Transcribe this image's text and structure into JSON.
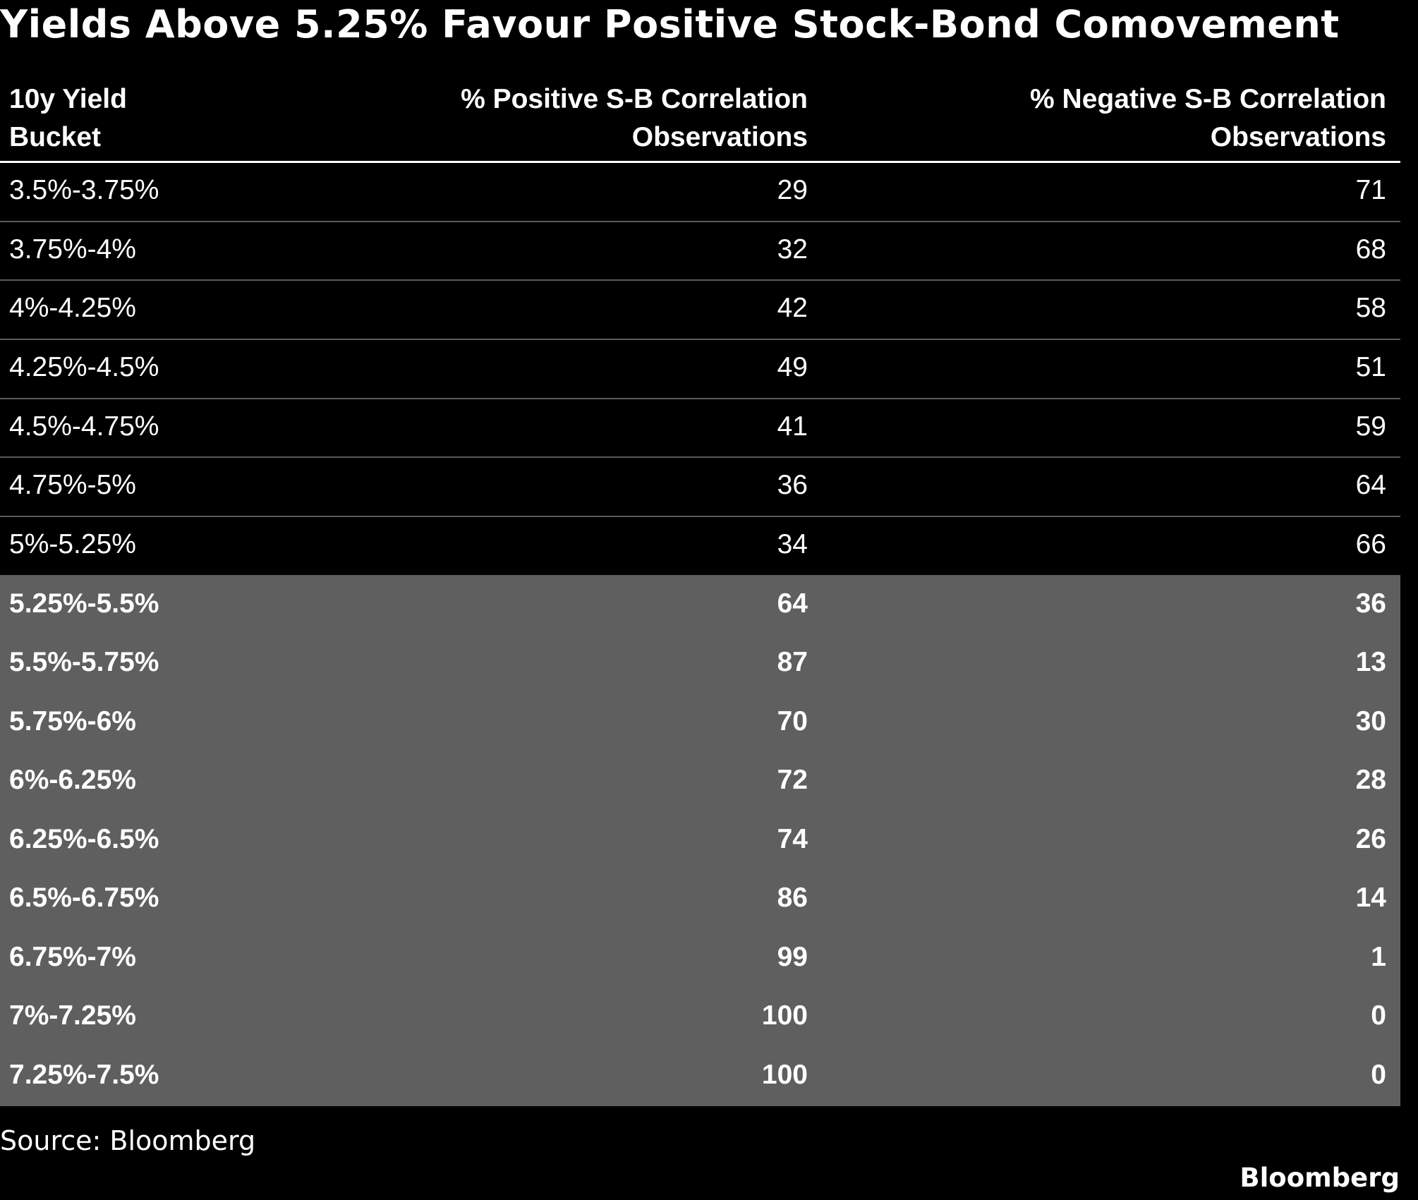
{
  "title": "Yields Above 5.25% Favour Positive Stock-Bond Comovement",
  "source": "Source: Bloomberg",
  "brand": "Bloomberg",
  "colors": {
    "background": "#000000",
    "highlight_row_background": "#5f5f5f",
    "text": "#ffffff",
    "row_divider": "#5a5a5a"
  },
  "chart_data": {
    "type": "table",
    "title": "Yields Above 5.25% Favour Positive Stock-Bond Comovement",
    "columns": [
      "10y Yield\nBucket",
      "% Positive S-B Correlation\nObservations",
      "% Negative S-B Correlation\nObservations"
    ],
    "rows": [
      {
        "bucket": "3.5%-3.75%",
        "positive": 29,
        "negative": 71,
        "highlight": false
      },
      {
        "bucket": "3.75%-4%",
        "positive": 32,
        "negative": 68,
        "highlight": false
      },
      {
        "bucket": "4%-4.25%",
        "positive": 42,
        "negative": 58,
        "highlight": false
      },
      {
        "bucket": "4.25%-4.5%",
        "positive": 49,
        "negative": 51,
        "highlight": false
      },
      {
        "bucket": "4.5%-4.75%",
        "positive": 41,
        "negative": 59,
        "highlight": false
      },
      {
        "bucket": "4.75%-5%",
        "positive": 36,
        "negative": 64,
        "highlight": false
      },
      {
        "bucket": "5%-5.25%",
        "positive": 34,
        "negative": 66,
        "highlight": false
      },
      {
        "bucket": "5.25%-5.5%",
        "positive": 64,
        "negative": 36,
        "highlight": true
      },
      {
        "bucket": "5.5%-5.75%",
        "positive": 87,
        "negative": 13,
        "highlight": true
      },
      {
        "bucket": "5.75%-6%",
        "positive": 70,
        "negative": 30,
        "highlight": true
      },
      {
        "bucket": "6%-6.25%",
        "positive": 72,
        "negative": 28,
        "highlight": true
      },
      {
        "bucket": "6.25%-6.5%",
        "positive": 74,
        "negative": 26,
        "highlight": true
      },
      {
        "bucket": "6.5%-6.75%",
        "positive": 86,
        "negative": 14,
        "highlight": true
      },
      {
        "bucket": "6.75%-7%",
        "positive": 99,
        "negative": 1,
        "highlight": true
      },
      {
        "bucket": "7%-7.25%",
        "positive": 100,
        "negative": 0,
        "highlight": true
      },
      {
        "bucket": "7.25%-7.5%",
        "positive": 100,
        "negative": 0,
        "highlight": true
      }
    ]
  }
}
